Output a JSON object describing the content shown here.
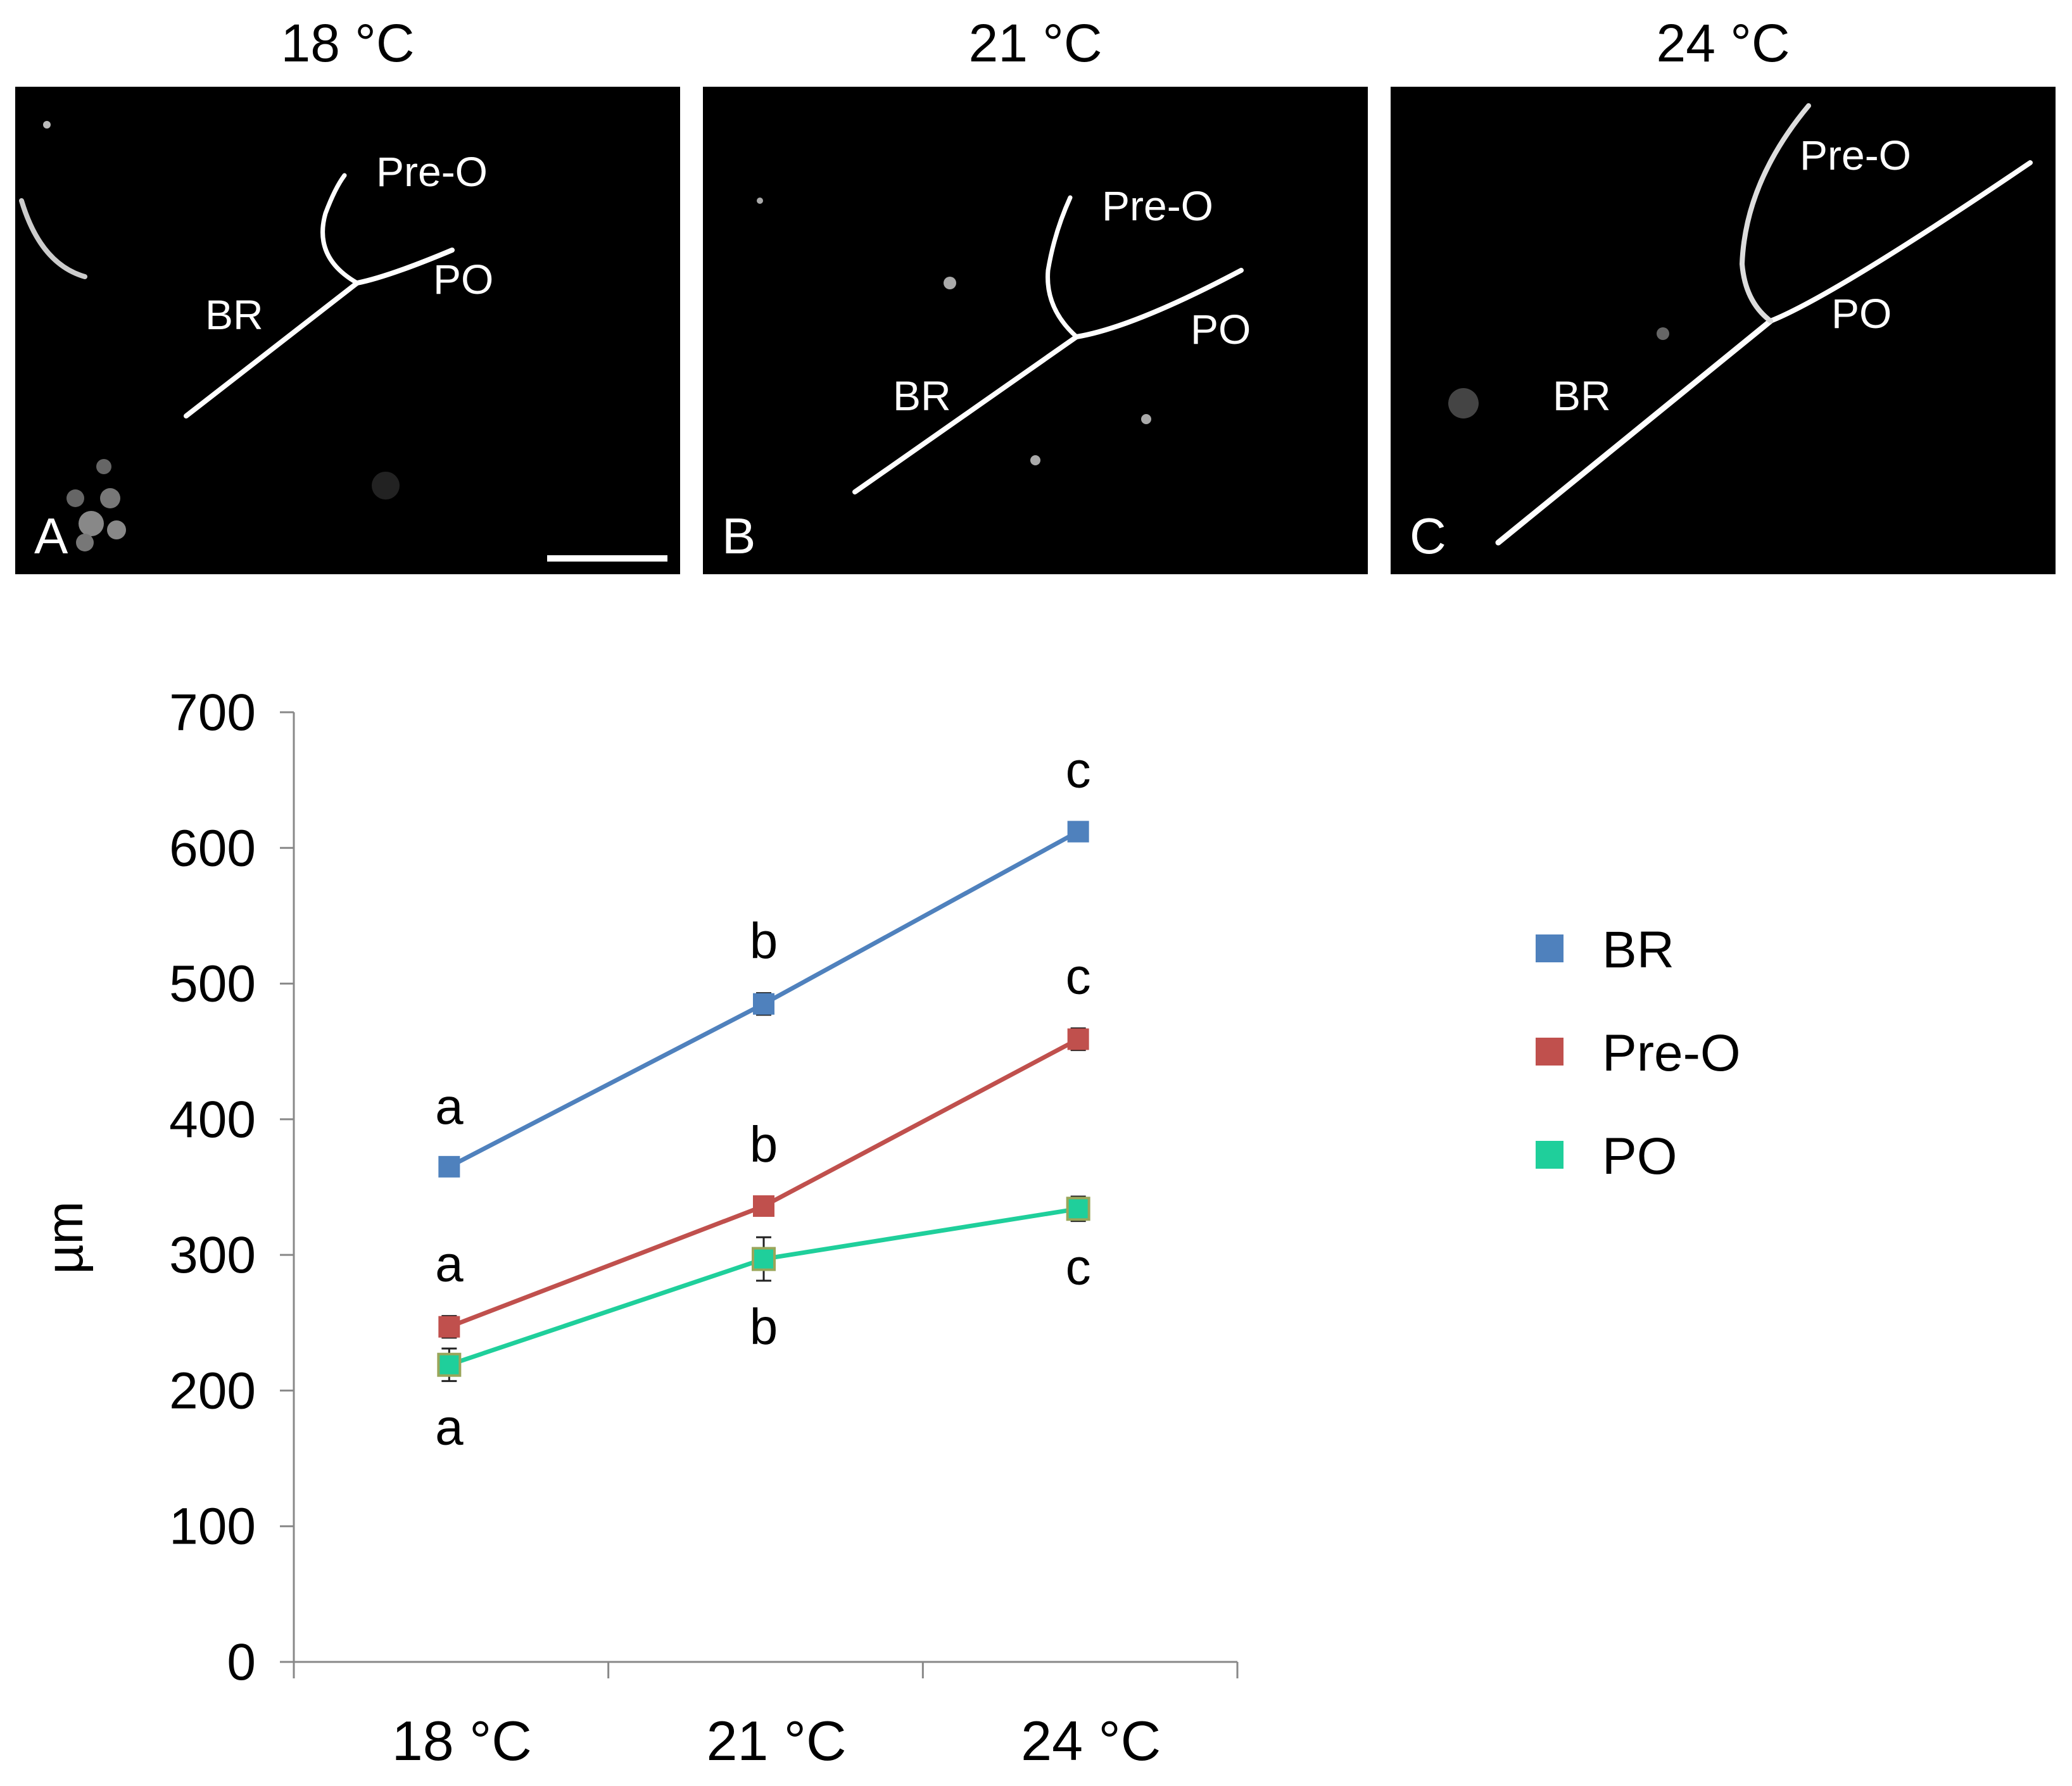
{
  "figure": {
    "panels": [
      {
        "id": "A",
        "header": "18 °C",
        "letter": "A",
        "labels": {
          "pre_o": "Pre-O",
          "po": "PO",
          "br": "BR"
        }
      },
      {
        "id": "B",
        "header": "21 °C",
        "letter": "B",
        "labels": {
          "pre_o": "Pre-O",
          "po": "PO",
          "br": "BR"
        }
      },
      {
        "id": "C",
        "header": "24 °C",
        "letter": "C",
        "labels": {
          "pre_o": "Pre-O",
          "po": "PO",
          "br": "BR"
        }
      }
    ]
  },
  "chart_data": {
    "type": "line",
    "title": "",
    "xlabel": "",
    "ylabel": "µm",
    "categories": [
      "18 °C",
      "21 °C",
      "24 °C"
    ],
    "ylim": [
      0,
      700
    ],
    "yticks": [
      0,
      100,
      200,
      300,
      400,
      500,
      600,
      700
    ],
    "grid": false,
    "legend_position": "right",
    "series": [
      {
        "name": "BR",
        "color": "#4f81bd",
        "values": [
          365,
          485,
          612
        ],
        "errors": [
          6,
          8,
          7
        ],
        "letters": [
          "a",
          "b",
          "c"
        ],
        "letter_side": [
          "above",
          "above",
          "above"
        ]
      },
      {
        "name": "Pre-O",
        "color": "#c0504d",
        "values": [
          247,
          336,
          459
        ],
        "errors": [
          8,
          7,
          8
        ],
        "letters": [
          "a",
          "b",
          "c"
        ],
        "letter_side": [
          "above",
          "above",
          "above"
        ]
      },
      {
        "name": "PO",
        "color": "#1fcf9b",
        "values": [
          219,
          297,
          334
        ],
        "errors": [
          12,
          16,
          9
        ],
        "letters": [
          "a",
          "b",
          "c"
        ],
        "letter_side": [
          "below",
          "below",
          "below"
        ]
      }
    ]
  }
}
